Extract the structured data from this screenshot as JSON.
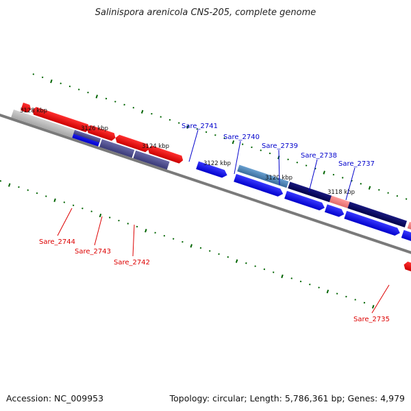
{
  "title": "Salinispora arenicola CNS-205, complete genome",
  "footer": {
    "accession": "Accession: NC_009953",
    "summary": "Topology: circular; Length: 5,786,361 bp; Genes: 4,979"
  },
  "kbp_ticks": [
    "3128 kbp",
    "3126 kbp",
    "3124 kbp",
    "3122 kbp",
    "3120 kbp",
    "3118 kbp"
  ],
  "gene_labels_top": [
    "Sare_2741",
    "Sare_2740",
    "Sare_2739",
    "Sare_2738",
    "Sare_2737"
  ],
  "gene_labels_bottom": [
    "Sare_2744",
    "Sare_2743",
    "Sare_2742",
    "Sare_2735"
  ],
  "colors": {
    "backbone": "#7a7a7a",
    "forward_gene": "#0000ee",
    "dark_gene": "#000066",
    "steel_gene": "#4682b4",
    "reverse_gene": "#ee0000",
    "pink_gene": "#f08080",
    "grey_gene": "#bbbbbb",
    "purple_gene": "#4b4b8f",
    "tick": "#006400"
  }
}
